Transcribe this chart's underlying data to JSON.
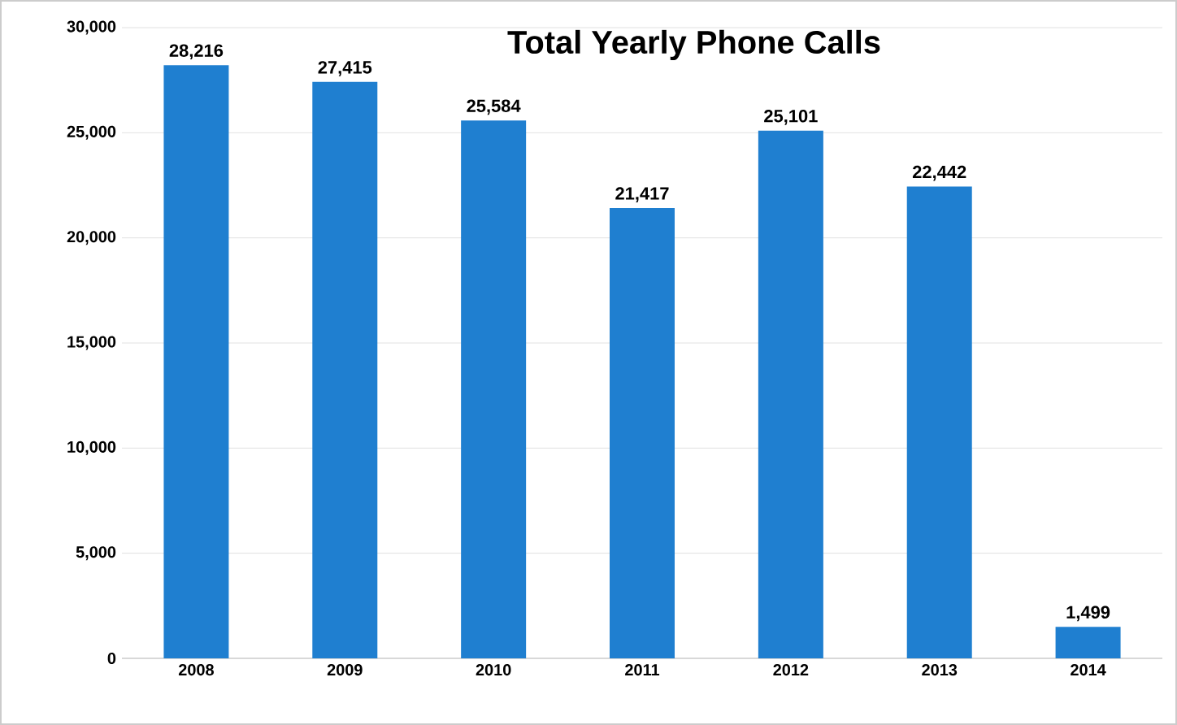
{
  "chart_data": {
    "type": "bar",
    "title": "Total Yearly Phone Calls",
    "categories": [
      "2008",
      "2009",
      "2010",
      "2011",
      "2012",
      "2013",
      "2014"
    ],
    "values": [
      28216,
      27415,
      25584,
      21417,
      25101,
      22442,
      1499
    ],
    "value_labels": [
      "28,216",
      "27,415",
      "25,584",
      "21,417",
      "25,101",
      "22,442",
      "1,499"
    ],
    "color": "#1f7fd0",
    "ylim": [
      0,
      30000
    ],
    "yticks": [
      {
        "value": 0,
        "label": "0"
      },
      {
        "value": 5000,
        "label": "5,000"
      },
      {
        "value": 10000,
        "label": "10,000"
      },
      {
        "value": 15000,
        "label": "15,000"
      },
      {
        "value": 20000,
        "label": "20,000"
      },
      {
        "value": 25000,
        "label": "25,000"
      },
      {
        "value": 30000,
        "label": "30,000"
      }
    ],
    "grid": "y"
  }
}
